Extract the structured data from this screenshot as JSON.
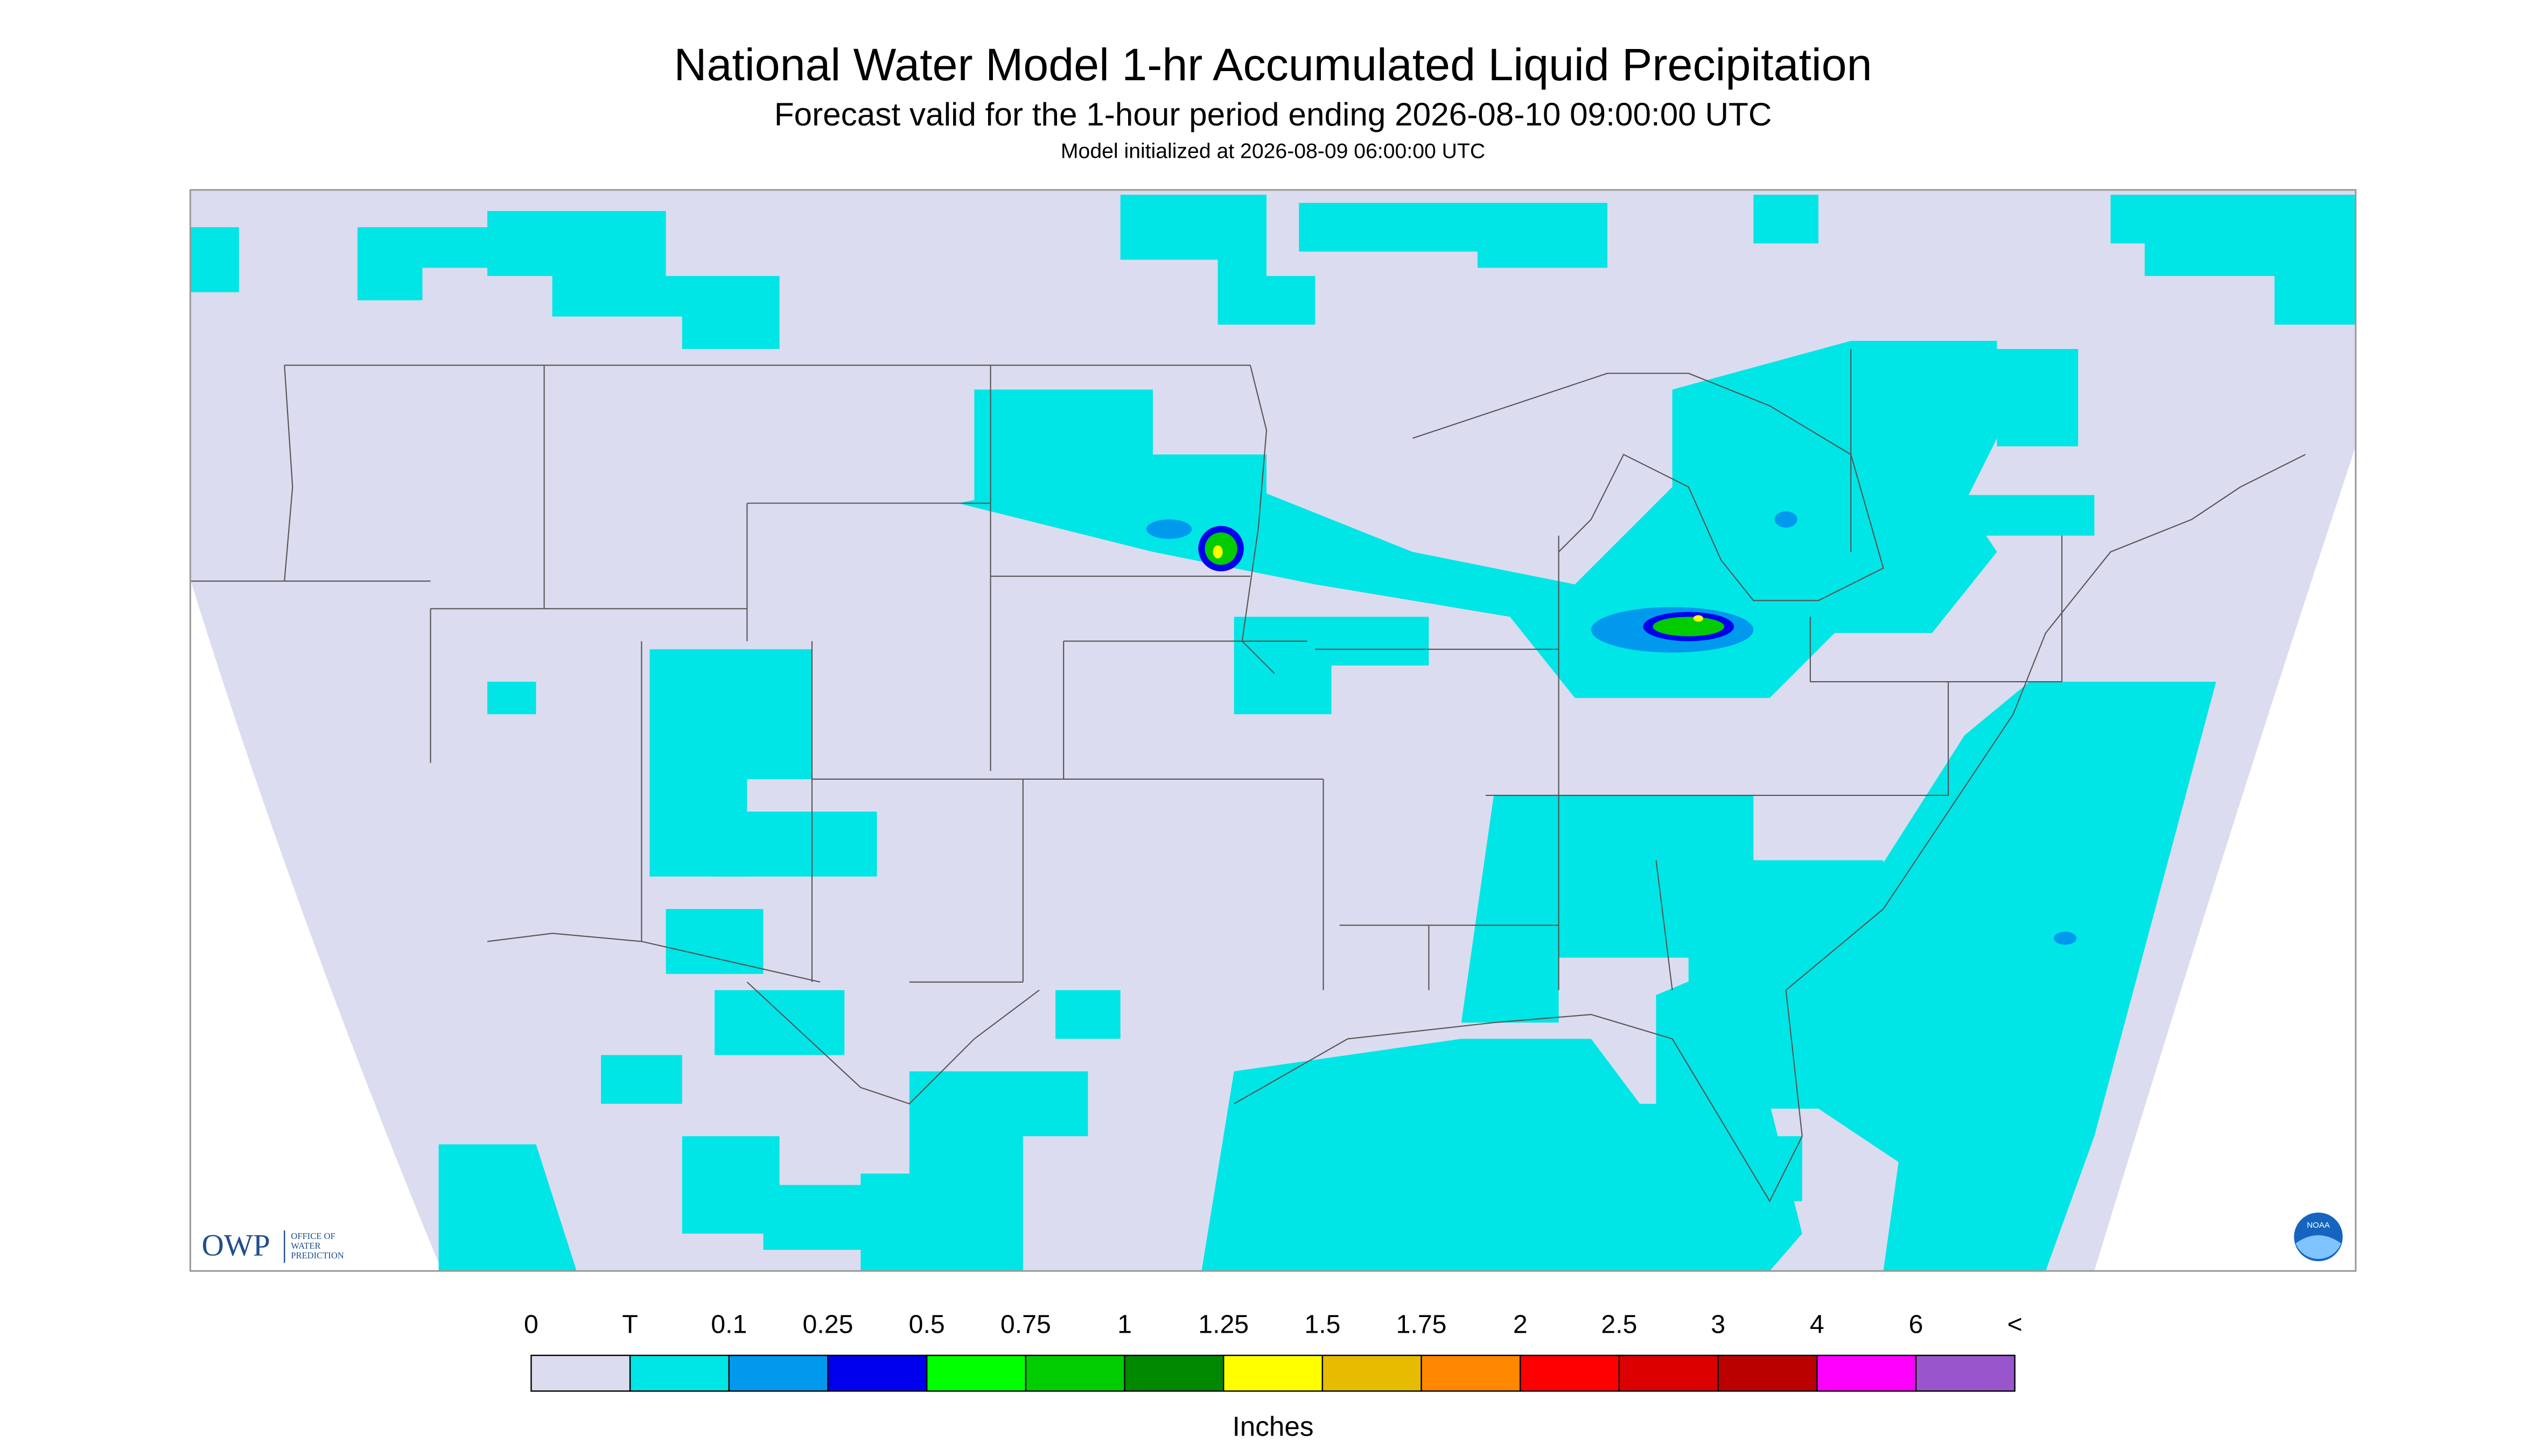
{
  "header": {
    "title": "National Water Model 1-hr Accumulated Liquid Precipitation",
    "subtitle": "Forecast valid for the 1-hour period ending 2026-08-10 09:00:00 UTC",
    "init": "Model initialized at 2026-08-09 06:00:00 UTC"
  },
  "legend": {
    "labels": [
      "0",
      "T",
      "0.1",
      "0.25",
      "0.5",
      "0.75",
      "1",
      "1.25",
      "1.5",
      "1.75",
      "2",
      "2.5",
      "3",
      "4",
      "6",
      "<"
    ],
    "colors": [
      "#dcdcf0",
      "#00e5e5",
      "#0099ee",
      "#0000ee",
      "#00ff00",
      "#00cc00",
      "#008800",
      "#ffff00",
      "#e6bb00",
      "#ff8800",
      "#ff0000",
      "#dd0000",
      "#bb0000",
      "#ff00ff",
      "#9955cc"
    ],
    "units": "Inches"
  },
  "logo": {
    "name": "OWP",
    "text": [
      "OFFICE OF",
      "WATER",
      "PREDICTION"
    ],
    "noaa": "NOAA"
  }
}
